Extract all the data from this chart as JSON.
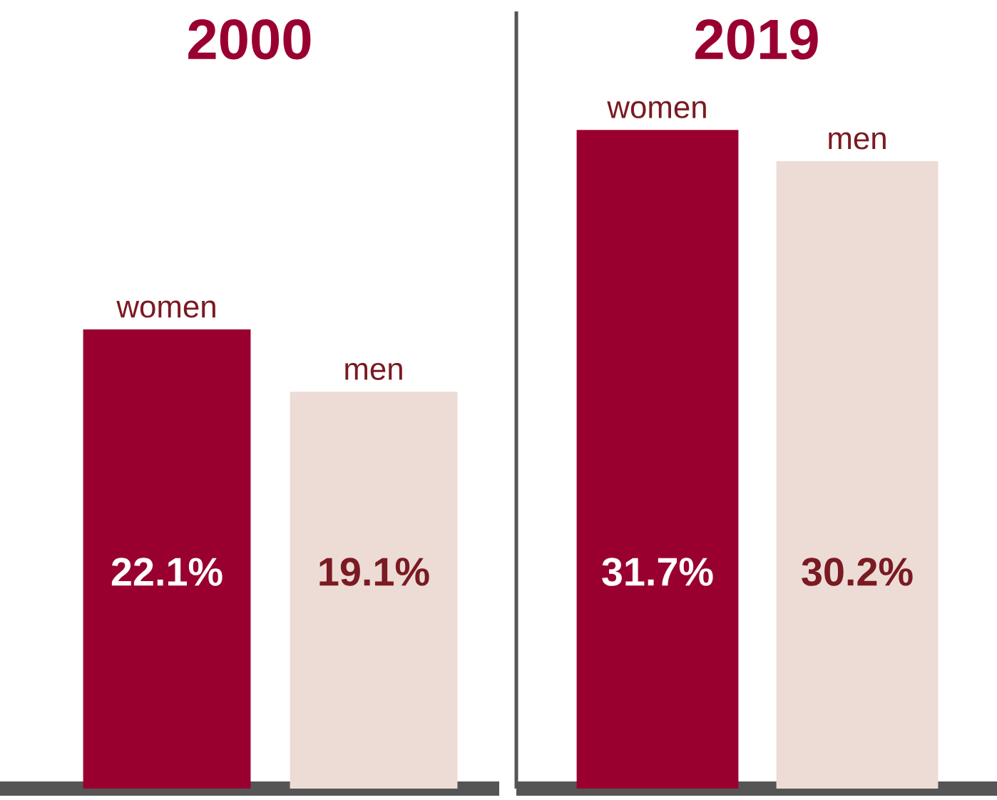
{
  "chart_data": [
    {
      "type": "bar",
      "title": "2000",
      "categories": [
        "women",
        "men"
      ],
      "values": [
        22.1,
        19.1
      ],
      "colors": [
        "#990030",
        "#ecdcd5"
      ],
      "value_labels": [
        "22.1%",
        "19.1%"
      ]
    },
    {
      "type": "bar",
      "title": "2019",
      "categories": [
        "women",
        "men"
      ],
      "values": [
        31.7,
        30.2
      ],
      "colors": [
        "#990030",
        "#ecdcd5"
      ],
      "value_labels": [
        "31.7%",
        "30.2%"
      ]
    }
  ]
}
